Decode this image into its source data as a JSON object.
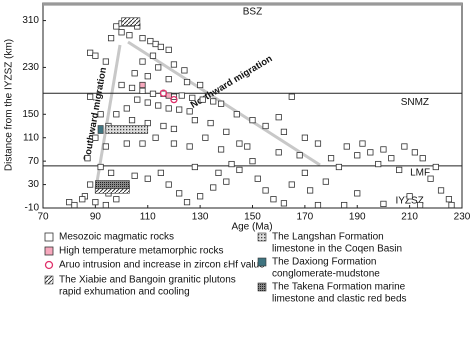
{
  "chart_data": {
    "type": "scatter",
    "x_label": "Age (Ma)",
    "y_label": "Distance from the IYZSZ (km)",
    "xlim": [
      70,
      230
    ],
    "xticks": [
      70,
      90,
      110,
      130,
      150,
      170,
      190,
      210,
      230
    ],
    "ylim": [
      -10,
      340
    ],
    "yticks": [
      -10,
      30,
      70,
      110,
      150,
      230,
      310
    ],
    "hlines": [
      {
        "label": "BSZ",
        "value": 338,
        "x": 150,
        "y": 325
      },
      {
        "label": "SNMZ",
        "value": 186,
        "x": 212,
        "y": 170
      },
      {
        "label": "LMF",
        "value": 62,
        "x": 214,
        "y": 50
      },
      {
        "label": "IYZSZ",
        "value": -10,
        "x": 210,
        "y": 2
      }
    ],
    "annotations": [
      {
        "text": "Northward migration",
        "x": 142,
        "y": 205,
        "rotate": -31
      },
      {
        "text": "Southward migration",
        "x": 90,
        "y": 150,
        "rotate": -80
      }
    ],
    "series": [
      {
        "name": [
          "Mesozoic magmatic rocks"
        ],
        "marker": "square",
        "color": "#ffffff",
        "x": [
          98,
          100,
          102,
          104,
          106,
          96,
          100,
          103,
          108,
          111,
          113,
          115,
          118,
          112,
          108,
          114,
          120,
          124,
          105,
          110,
          118,
          125,
          130,
          100,
          104,
          108,
          112,
          116,
          120,
          123,
          127,
          131,
          135,
          138,
          106,
          110,
          114,
          118,
          122,
          126,
          102,
          98,
          104,
          110,
          116,
          120,
          128,
          134,
          140,
          144,
          150,
          155,
          160,
          165,
          162,
          170,
          175,
          145,
          138,
          132,
          126,
          120,
          113,
          108,
          102,
          88,
          90,
          94,
          88,
          92,
          95,
          90,
          94,
          87,
          92,
          96,
          88,
          91,
          95,
          86,
          90,
          94,
          98,
          80,
          82,
          85,
          100,
          105,
          110,
          115,
          118,
          122,
          125,
          130,
          135,
          140,
          145,
          150,
          152,
          155,
          158,
          162,
          165,
          170,
          172,
          175,
          178,
          180,
          183,
          186,
          190,
          192,
          195,
          198,
          200,
          203,
          206,
          208,
          212,
          215,
          218,
          220,
          222,
          225,
          210,
          200,
          190,
          185,
          168,
          160,
          148,
          142,
          137,
          128,
          226,
          214
        ],
        "values": [
          300,
          305,
          305,
          305,
          300,
          280,
          290,
          285,
          280,
          275,
          270,
          265,
          260,
          250,
          240,
          230,
          235,
          225,
          220,
          215,
          210,
          205,
          200,
          200,
          195,
          190,
          185,
          185,
          180,
          182,
          178,
          175,
          172,
          168,
          175,
          170,
          165,
          160,
          158,
          155,
          160,
          150,
          140,
          135,
          130,
          125,
          140,
          135,
          120,
          150,
          140,
          130,
          145,
          180,
          120,
          110,
          100,
          100,
          90,
          110,
          95,
          100,
          110,
          100,
          100,
          255,
          250,
          240,
          180,
          150,
          130,
          110,
          95,
          75,
          60,
          50,
          30,
          20,
          15,
          10,
          0,
          -5,
          5,
          0,
          -5,
          5,
          30,
          45,
          40,
          50,
          30,
          15,
          0,
          10,
          25,
          35,
          55,
          70,
          40,
          20,
          5,
          -2,
          30,
          50,
          20,
          -5,
          35,
          75,
          60,
          95,
          80,
          100,
          85,
          65,
          90,
          75,
          55,
          95,
          85,
          75,
          40,
          60,
          20,
          5,
          10,
          -3,
          15,
          -5,
          80,
          85,
          95,
          65,
          50,
          60,
          -5,
          -5
        ]
      },
      {
        "name": [
          "High temperature metamorphic rocks"
        ],
        "marker": "square",
        "color": "#f7a8bd",
        "x": [
          108,
          118
        ],
        "values": [
          200,
          182
        ]
      },
      {
        "name": [
          "Aruo intrusion and increase in zircon εHf value"
        ],
        "marker": "circle",
        "color": "#e0306a",
        "x": [
          120,
          116
        ],
        "values": [
          175,
          186
        ]
      },
      {
        "name": [
          "The Xiabie and Bangoin granitic plutons",
          "rapid exhumation and cooling"
        ],
        "marker": "hatch",
        "x0": [
          100,
          90
        ],
        "x1": [
          107,
          103
        ],
        "values": [
          308,
          22
        ]
      },
      {
        "name": [
          "The Langshan Formation",
          "limestone in the Coqen Basin"
        ],
        "marker": "dots",
        "x0": [
          94
        ],
        "x1": [
          110
        ],
        "values": [
          124
        ]
      },
      {
        "name": [
          "The Daxiong Formation",
          "conglomerate-mudstone"
        ],
        "marker": "solid",
        "color": "#3f7480",
        "x0": [
          91
        ],
        "x1": [
          93
        ],
        "values": [
          124
        ]
      },
      {
        "name": [
          "The Takena Formation marine",
          "limestone and clastic red beds"
        ],
        "marker": "dense",
        "x0": [
          90
        ],
        "x1": [
          103
        ],
        "values": [
          30
        ]
      }
    ]
  }
}
